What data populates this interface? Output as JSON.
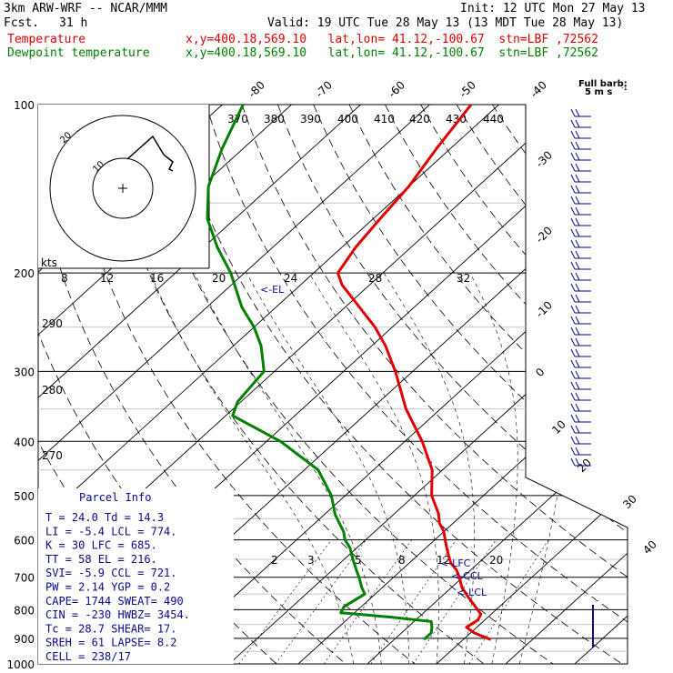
{
  "header": {
    "model": "3km ARW-WRF -- NCAR/MMM",
    "init": "Init: 12 UTC Mon 27 May 13",
    "fcst_label": "Fcst.",
    "fcst_value": "31 h",
    "valid": "Valid: 19 UTC Tue 28 May 13 (13 MDT Tue 28 May 13)",
    "temp_label": "Temperature",
    "dew_label": "Dewpoint temperature",
    "temp_info": "x,y=400.18,569.10   lat,lon= 41.12,-100.67  stn=LBF ,72562",
    "dew_info": "x,y=400.18,569.10   lat,lon= 41.12,-100.67  stn=LBF ,72562"
  },
  "colors": {
    "temperature": "#e00000",
    "dewpoint": "#008000",
    "parcel_info": "#0a0a8a"
  },
  "wind_key": {
    "line1": "Full barb:",
    "line2": "5 m s",
    "unit_sup": "-1"
  },
  "hodograph": {
    "kts_label": "kts",
    "ring_label_inner": "10",
    "ring_label_outer": "20"
  },
  "levels": {
    "pressure_labels": [
      "100",
      "200",
      "300",
      "400",
      "500",
      "600",
      "700",
      "800",
      "900",
      "1000"
    ],
    "lcl_label": "<-LCL",
    "ccl_label": "<-CCL",
    "lfc_label": "<-LFC",
    "el_label": "<-EL"
  },
  "parcel_info": {
    "title": "Parcel Info",
    "rows": [
      "T  =   24.0 Td =  14.3",
      "LI =   -5.4 LCL =  774.",
      "K  =     30 LFC =  685.",
      "TT =     58 EL  =  216.",
      "SVI=   -5.9 CCL =  721.",
      "PW =   2.14 YGP =   0.2",
      "CAPE=  1744 SWEAT=  490",
      "CIN =  -230 HWBZ= 3454.",
      "Tc =   28.7 SHEAR=  17.",
      "SREH =   61 LAPSE=  8.2",
      "CELL = 238/17"
    ]
  },
  "chart_data": {
    "type": "line",
    "chart_kind": "skew-T log-P sounding",
    "y_axis": "pressure (hPa), log scale",
    "ylim": [
      1000,
      100
    ],
    "x_axis": "temperature (°C), skewed",
    "isotherm_labels": [
      "-80",
      "-70",
      "-60",
      "-50",
      "-40",
      "-30",
      "-20",
      "-10",
      "0",
      "10",
      "20",
      "30",
      "40"
    ],
    "dry_adiabat_labels": [
      "370",
      "380",
      "390",
      "400",
      "410",
      "420",
      "430",
      "440",
      "290",
      "280",
      "270"
    ],
    "mixing_ratio_labels": [
      "8",
      "12",
      "16",
      "20",
      "24",
      "28",
      "32",
      "2",
      "3",
      "5",
      "8",
      "12",
      "20"
    ],
    "series": [
      {
        "name": "Temperature",
        "pressure": [
          905,
          880,
          860,
          835,
          815,
          790,
          760,
          730,
          700,
          680,
          660,
          640,
          620,
          600,
          580,
          560,
          540,
          500,
          450,
          400,
          350,
          300,
          270,
          250,
          230,
          210,
          200,
          180,
          160,
          140,
          120,
          100
        ],
        "temperature_c": [
          24.0,
          20.5,
          18.5,
          19.0,
          18.5,
          16.5,
          14.0,
          11.5,
          9.5,
          8.0,
          6.0,
          4.5,
          3.0,
          1.5,
          0.0,
          -2.0,
          -3.5,
          -7.5,
          -11.5,
          -17.5,
          -25.0,
          -32.5,
          -38.0,
          -42.5,
          -48.0,
          -54.0,
          -56.5,
          -58.0,
          -59.0,
          -60.0,
          -62.0,
          -64.0
        ]
      },
      {
        "name": "Dewpoint temperature",
        "pressure": [
          905,
          880,
          860,
          840,
          825,
          810,
          790,
          770,
          750,
          730,
          700,
          680,
          660,
          640,
          620,
          600,
          580,
          560,
          540,
          500,
          450,
          400,
          360,
          340,
          320,
          300,
          270,
          250,
          230,
          200,
          180,
          160,
          140,
          120,
          100
        ],
        "temperature_c": [
          14.3,
          14.3,
          13.5,
          12.5,
          6.0,
          -2.0,
          -2.5,
          -2.0,
          -1.5,
          -3.0,
          -5.0,
          -6.5,
          -8.0,
          -9.5,
          -11.0,
          -13.0,
          -14.5,
          -16.5,
          -18.5,
          -22.0,
          -28.0,
          -38.0,
          -49.0,
          -50.5,
          -51.0,
          -51.5,
          -56.0,
          -60.0,
          -65.0,
          -72.0,
          -78.0,
          -84.0,
          -89.0,
          -93.0,
          -97.0
        ]
      }
    ]
  }
}
